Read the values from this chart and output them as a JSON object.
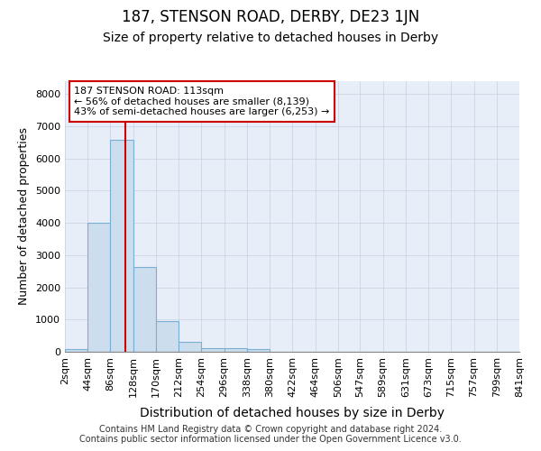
{
  "title": "187, STENSON ROAD, DERBY, DE23 1JN",
  "subtitle": "Size of property relative to detached houses in Derby",
  "xlabel": "Distribution of detached houses by size in Derby",
  "ylabel": "Number of detached properties",
  "bar_color": "#ccdded",
  "bar_edge_color": "#7aafd4",
  "annotation_line1": "187 STENSON ROAD: 113sqm",
  "annotation_line2": "← 56% of detached houses are smaller (8,139)",
  "annotation_line3": "43% of semi-detached houses are larger (6,253) →",
  "annotation_box_facecolor": "#ffffff",
  "annotation_box_edgecolor": "#cc0000",
  "redline_x": 113,
  "redline_color": "#cc0000",
  "bin_edges": [
    2,
    44,
    86,
    128,
    170,
    212,
    254,
    296,
    338,
    380,
    422,
    464,
    506,
    547,
    589,
    631,
    673,
    715,
    757,
    799,
    841
  ],
  "bin_labels": [
    "2sqm",
    "44sqm",
    "86sqm",
    "128sqm",
    "170sqm",
    "212sqm",
    "254sqm",
    "296sqm",
    "338sqm",
    "380sqm",
    "422sqm",
    "464sqm",
    "506sqm",
    "547sqm",
    "589sqm",
    "631sqm",
    "673sqm",
    "715sqm",
    "757sqm",
    "799sqm",
    "841sqm"
  ],
  "bar_heights": [
    80,
    4000,
    6580,
    2620,
    950,
    310,
    125,
    115,
    80,
    0,
    0,
    0,
    0,
    0,
    0,
    0,
    0,
    0,
    0,
    0
  ],
  "ylim": [
    0,
    8400
  ],
  "yticks": [
    0,
    1000,
    2000,
    3000,
    4000,
    5000,
    6000,
    7000,
    8000
  ],
  "grid_color": "#c8cfe0",
  "bg_color": "#e8eef8",
  "footer_text": "Contains HM Land Registry data © Crown copyright and database right 2024.\nContains public sector information licensed under the Open Government Licence v3.0.",
  "title_fontsize": 12,
  "subtitle_fontsize": 10,
  "xlabel_fontsize": 10,
  "ylabel_fontsize": 9,
  "tick_fontsize": 8,
  "footer_fontsize": 7
}
